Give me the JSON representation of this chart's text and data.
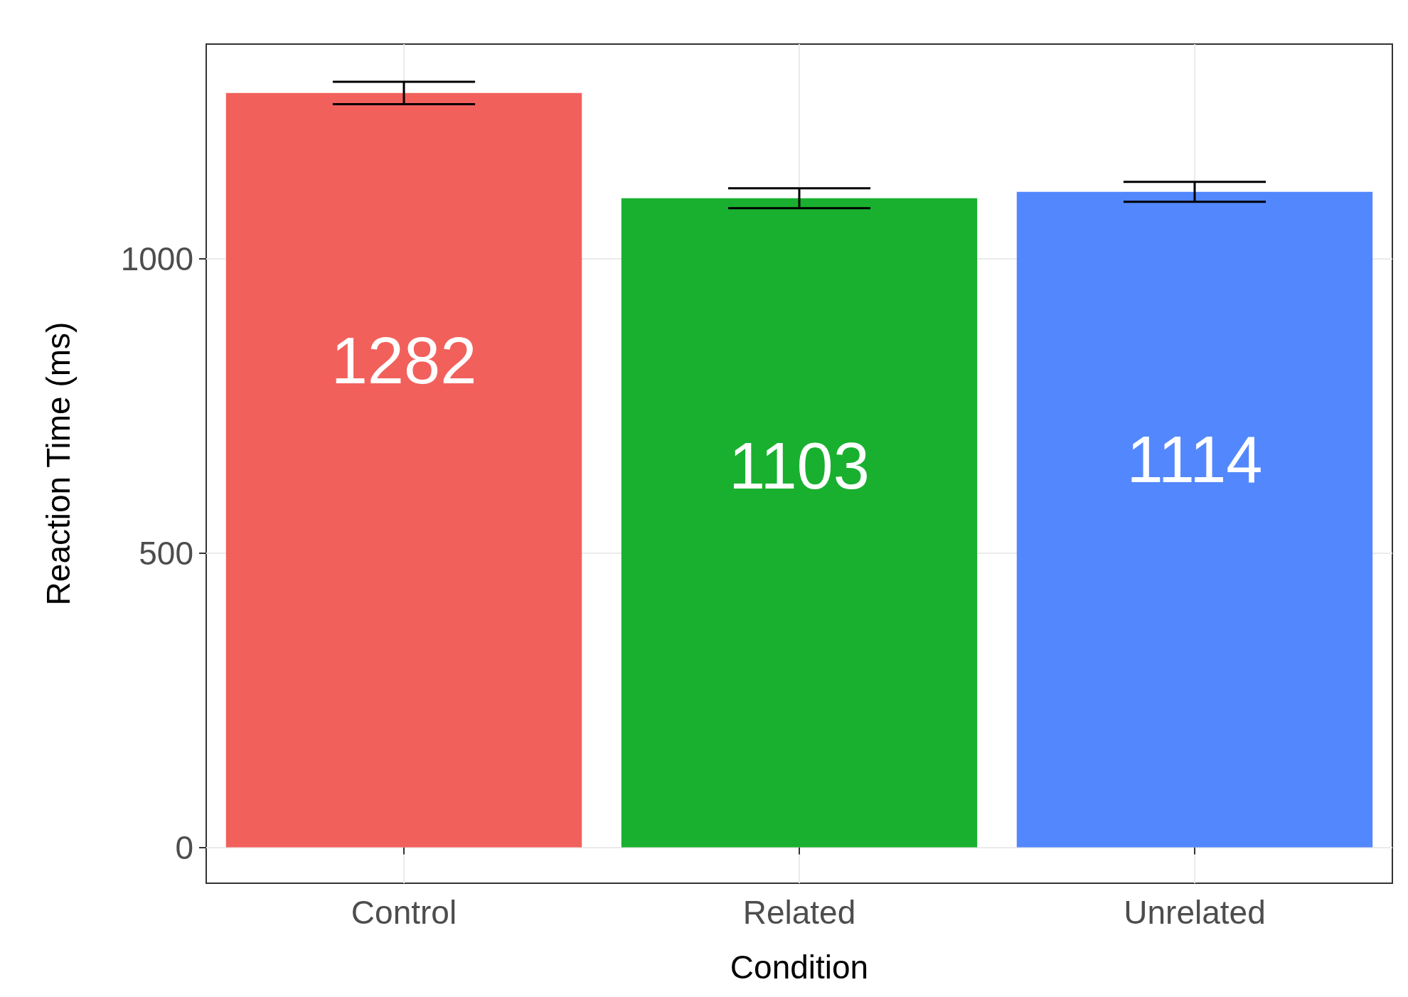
{
  "chart_data": {
    "type": "bar",
    "xlabel": "Condition",
    "ylabel": "Reaction Time (ms)",
    "categories": [
      "Control",
      "Related",
      "Unrelated"
    ],
    "values": [
      1282,
      1103,
      1114
    ],
    "colors": [
      "#f2605c",
      "#1ab02f",
      "#5387fd"
    ],
    "errors": [
      19,
      17,
      17
    ],
    "data_labels": true,
    "ylim": [
      -61,
      1365
    ],
    "yticks": [
      0,
      500,
      1000
    ],
    "grid": true
  }
}
